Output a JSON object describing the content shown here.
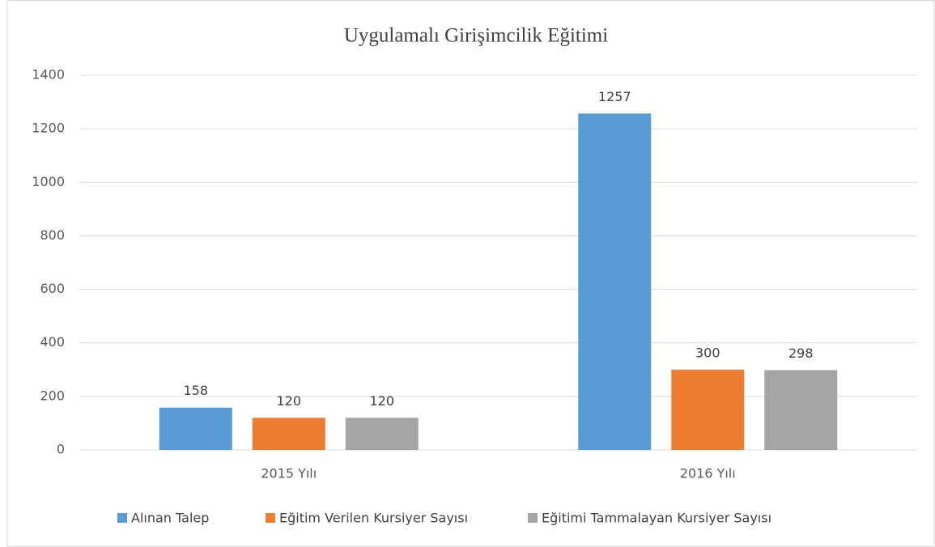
{
  "chart_data": {
    "type": "bar",
    "title": "Uygulamalı Girişimcilik Eğitimi",
    "categories": [
      "2015 Yılı",
      "2016 Yılı"
    ],
    "series": [
      {
        "name": "Alınan Talep",
        "color": "#5b9bd5",
        "values": [
          158,
          1257
        ]
      },
      {
        "name": "Eğitim Verilen Kursiyer Sayısı",
        "color": "#ed7d31",
        "values": [
          120,
          300
        ]
      },
      {
        "name": "Eğitimi Tammalayan Kursiyer Sayısı",
        "color": "#a5a5a5",
        "values": [
          120,
          298
        ]
      }
    ],
    "ylim": [
      0,
      1400
    ],
    "yticks": [
      0,
      200,
      400,
      600,
      800,
      1000,
      1200,
      1400
    ],
    "grid": true,
    "legend": "bottom"
  }
}
